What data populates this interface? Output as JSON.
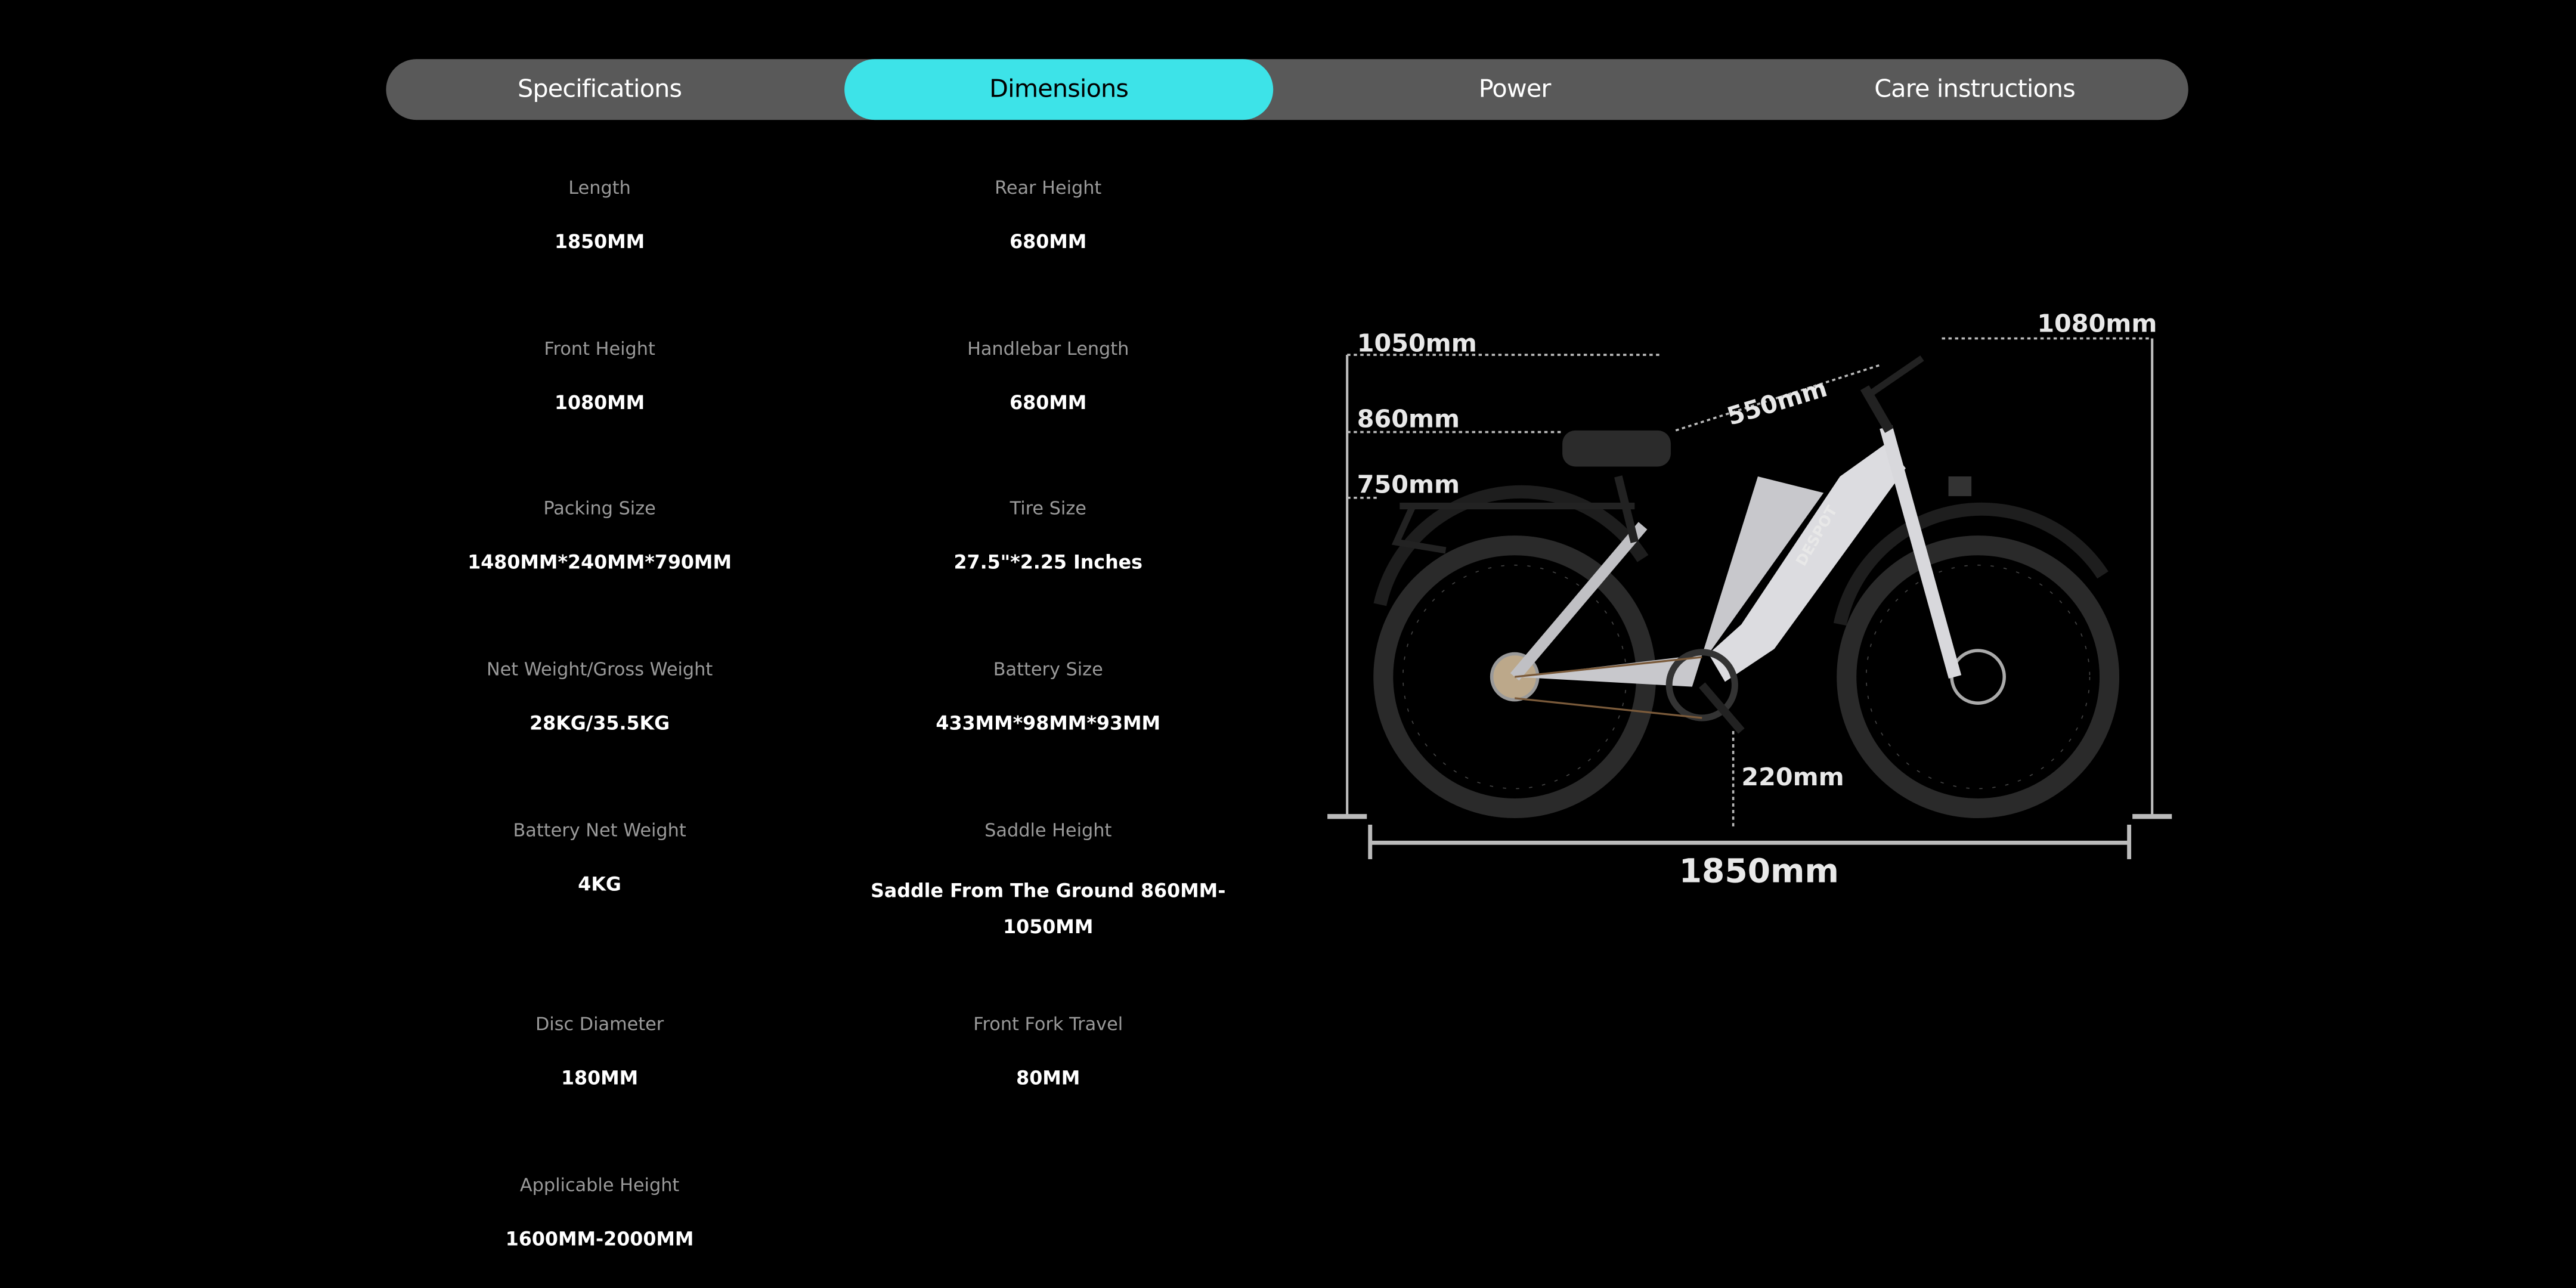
{
  "tabs": [
    {
      "label": "Specifications",
      "active": false
    },
    {
      "label": "Dimensions",
      "active": true
    },
    {
      "label": "Power",
      "active": false
    },
    {
      "label": "Care instructions",
      "active": false
    }
  ],
  "colors": {
    "accent": "#3de3e8",
    "tab_bar": "#595959",
    "background": "#000000"
  },
  "specs": [
    {
      "label": "Length",
      "value": "1850MM"
    },
    {
      "label": "Rear Height",
      "value": "680MM"
    },
    {
      "label": "Front Height",
      "value": "1080MM"
    },
    {
      "label": "Handlebar Length",
      "value": "680MM"
    },
    {
      "label": "Packing Size",
      "value": "1480MM*240MM*790MM"
    },
    {
      "label": "Tire Size",
      "value": "27.5\"*2.25 Inches"
    },
    {
      "label": "Net Weight/Gross Weight",
      "value": "28KG/35.5KG"
    },
    {
      "label": "Battery Size",
      "value": "433MM*98MM*93MM"
    },
    {
      "label": "Battery Net Weight",
      "value": "4KG"
    },
    {
      "label": "Saddle Height",
      "value": "Saddle From The Ground 860MM-1050MM"
    },
    {
      "label": "Disc Diameter",
      "value": "180MM"
    },
    {
      "label": "Front Fork Travel",
      "value": "80MM"
    },
    {
      "label": "Applicable Height",
      "value": "1600MM-2000MM"
    }
  ],
  "diagram": {
    "saddle_max": "1050mm",
    "saddle_min": "860mm",
    "rack_height": "750mm",
    "reach": "550mm",
    "front_height": "1080mm",
    "ground_clearance": "220mm",
    "total_length": "1850mm",
    "brand_logo": "DESPOT"
  }
}
